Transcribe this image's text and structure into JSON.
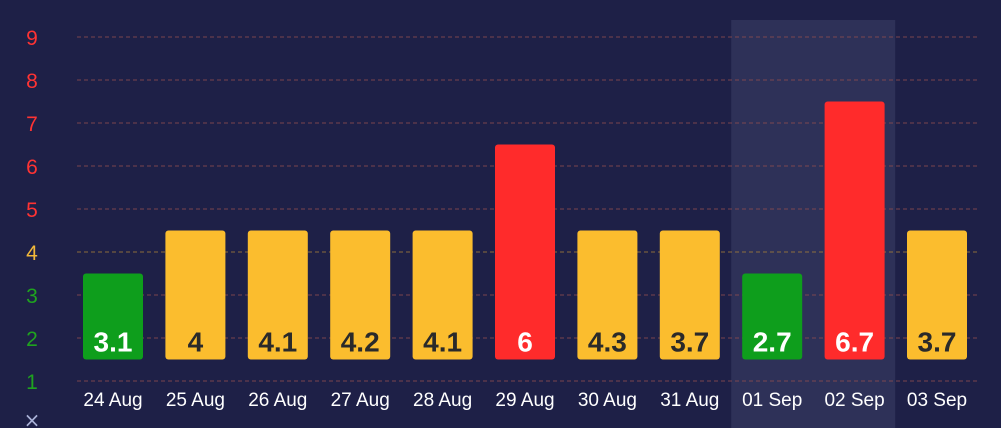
{
  "chart_data": {
    "type": "bar",
    "categories": [
      "24 Aug",
      "25 Aug",
      "26 Aug",
      "27 Aug",
      "28 Aug",
      "29 Aug",
      "30 Aug",
      "31 Aug",
      "01 Sep",
      "02 Sep",
      "03 Sep"
    ],
    "data_labels": [
      "3.1",
      "4",
      "4.1",
      "4.2",
      "4.1",
      "6",
      "4.3",
      "3.7",
      "2.7",
      "6.7",
      "3.7"
    ],
    "bar_tops": [
      3.5,
      4.5,
      4.5,
      4.5,
      4.5,
      6.5,
      4.5,
      4.5,
      3.5,
      7.5,
      4.5
    ],
    "bar_base": 1.5,
    "ylim": [
      1,
      9
    ],
    "yticks": [
      "1",
      "2",
      "3",
      "4",
      "5",
      "6",
      "7",
      "8",
      "9"
    ],
    "ytick_colors": [
      "#1fa31f",
      "#1fa31f",
      "#1fa31f",
      "#f2b83a",
      "#ff3333",
      "#ff3333",
      "#ff3333",
      "#ff3333",
      "#ff3333"
    ],
    "bar_colors": [
      "#0e9e1c",
      "#fbbd2e",
      "#fbbd2e",
      "#fbbd2e",
      "#fbbd2e",
      "#ff2b2b",
      "#fbbd2e",
      "#fbbd2e",
      "#0e9e1c",
      "#ff2b2b",
      "#fbbd2e"
    ],
    "label_colors": [
      "#ffffff",
      "#2a2a2a",
      "#2a2a2a",
      "#2a2a2a",
      "#2a2a2a",
      "#ffffff",
      "#2a2a2a",
      "#2a2a2a",
      "#ffffff",
      "#ffffff",
      "#2a2a2a"
    ],
    "highlighted_category": "01 Sep",
    "bottom_axis_glyph": "×",
    "grid": "dashed",
    "colors": {
      "background": "#1e2047",
      "highlight_band": "#2e3158",
      "grid_line": "#8a4a4f",
      "grid_line_threshold": "#a07a3a",
      "axis_text": "#ffffff",
      "glyph": "#aab2d8"
    }
  }
}
